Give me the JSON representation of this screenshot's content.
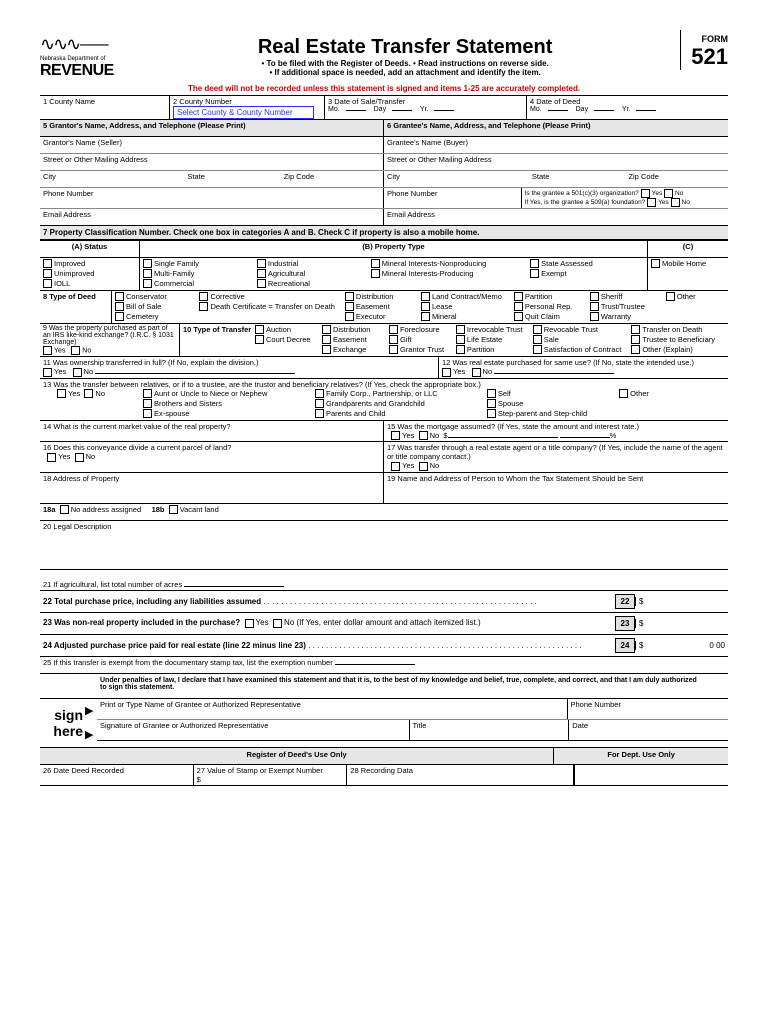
{
  "header": {
    "dept_line1": "Nebraska Department of",
    "dept_line2": "REVENUE",
    "title": "Real Estate Transfer Statement",
    "sub1": "• To be filed with the Register of Deeds.    • Read instructions on reverse side.",
    "sub2": "• If additional space is needed, add an attachment and identify the item.",
    "form_label": "FORM",
    "form_number": "521",
    "warning": "The deed will not be recorded unless this statement is signed and items 1-25 are accurately completed."
  },
  "r1": {
    "c1": "1  County Name",
    "c2": "2  County Number",
    "c2_placeholder": "Select County & County Number",
    "c3": "3  Date of Sale/Transfer",
    "c4": "4  Date of Deed",
    "mo": "Mo.",
    "day": "Day",
    "yr": "Yr."
  },
  "r5": {
    "left": "5  Grantor's Name, Address, and Telephone (Please Print)",
    "right": "6  Grantee's Name, Address, and Telephone (Please Print)"
  },
  "grantor": {
    "name": "Grantor's Name (Seller)",
    "street": "Street or Other Mailing Address",
    "city": "City",
    "state": "State",
    "zip": "Zip Code",
    "phone": "Phone Number",
    "email": "Email Address"
  },
  "grantee": {
    "name": "Grantee's Name (Buyer)",
    "street": "Street or Other Mailing Address",
    "city": "City",
    "state": "State",
    "zip": "Zip Code",
    "phone": "Phone Number",
    "email": "Email Address",
    "q501": "Is the grantee a 501(c)(3) organization?",
    "q509": "If Yes, is the grantee a 509(a) foundation?",
    "yes": "Yes",
    "no": "No"
  },
  "r7": {
    "hdr": "7  Property Classification Number. Check one box in categories A and B. Check C if property is also a mobile home.",
    "a": "(A) Status",
    "b": "(B) Property Type",
    "c": "(C)",
    "a_items": [
      "Improved",
      "Unimproved",
      "IOLL"
    ],
    "b_col1": [
      "Single Family",
      "Multi-Family",
      "Commercial"
    ],
    "b_col2": [
      "Industrial",
      "Agricultural",
      "Recreational"
    ],
    "b_col3": [
      "Mineral Interests-Nonproducing",
      "Mineral Interests-Producing"
    ],
    "b_col4": [
      "State Assessed",
      "Exempt"
    ],
    "c_items": [
      "Mobile Home"
    ]
  },
  "r8": {
    "lbl": "8  Type of Deed",
    "c1": [
      "Conservator",
      "Bill of Sale",
      "Cemetery"
    ],
    "c2": [
      "Corrective",
      "Death Certificate = Transfer on Death"
    ],
    "c3": [
      "Distribution",
      "Easement",
      "Executor"
    ],
    "c4": [
      "Land Contract/Memo",
      "Lease",
      "Mineral"
    ],
    "c5": [
      "Partition",
      "Personal Rep.",
      "Quit Claim"
    ],
    "c6": [
      "Sheriff",
      "Trust/Trustee",
      "Warranty"
    ],
    "c7": [
      "Other"
    ]
  },
  "r9": {
    "lbl": "9   Was the property purchased as part of an IRS like-kind exchange? (I.R.C. § 1031 Exchange)",
    "yes": "Yes",
    "no": "No"
  },
  "r10": {
    "lbl": "10  Type of Transfer",
    "c1": [
      "Auction",
      "Court Decree"
    ],
    "c2": [
      "Distribution",
      "Easement",
      "Exchange"
    ],
    "c3": [
      "Foreclosure",
      "Gift",
      "Grantor Trust"
    ],
    "c4": [
      "Irrevocable Trust",
      "Life Estate",
      "Partition"
    ],
    "c5": [
      "Revocable Trust",
      "Sale",
      "Satisfaction of Contract"
    ],
    "c6": [
      "Transfer on Death",
      "Trustee to Beneficiary",
      "Other (Explain)"
    ]
  },
  "r11": {
    "lbl": "11  Was ownership transferred in full? (If No, explain the division.)",
    "yes": "Yes",
    "no": "No"
  },
  "r12": {
    "lbl": "12  Was real estate purchased for same use? (If No, state the intended use.)",
    "yes": "Yes",
    "no": "No"
  },
  "r13": {
    "lbl": "13  Was the transfer between relatives, or if to a trustee, are the trustor and beneficiary relatives?  (If Yes, check the appropriate box.)",
    "yes": "Yes",
    "no": "No",
    "c1": [
      "Aunt or Uncle to Niece or Nephew",
      "Brothers and Sisters",
      "Ex-spouse"
    ],
    "c2": [
      "Family Corp., Partnership, or LLC",
      "Grandparents and Grandchild",
      "Parents and Child"
    ],
    "c3": [
      "Self",
      "Spouse",
      "Step-parent and Step-child"
    ],
    "c4": [
      "Other"
    ]
  },
  "r14": {
    "lbl": "14  What is the current market value of the real property?"
  },
  "r15": {
    "lbl": "15  Was the mortgage assumed? (If Yes, state the amount and interest rate.)",
    "yes": "Yes",
    "no": "No",
    "dollar": "$",
    "pct": "%"
  },
  "r16": {
    "lbl": "16  Does this conveyance divide a current parcel of land?",
    "yes": "Yes",
    "no": "No"
  },
  "r17": {
    "lbl": "17  Was transfer through a real estate agent or a title company? (If Yes, include the name of the agent or title company contact.)",
    "yes": "Yes",
    "no": "No"
  },
  "r18": {
    "lbl": "18  Address of Property"
  },
  "r19": {
    "lbl": "19  Name and Address of Person to Whom the Tax Statement Should be Sent"
  },
  "r18a": {
    "a": "18a",
    "a_lbl": "No address assigned",
    "b": "18b",
    "b_lbl": "Vacant land"
  },
  "r20": {
    "lbl": "20  Legal Description"
  },
  "r21": {
    "lbl": "21  If agricultural, list total number of acres"
  },
  "r22": {
    "lbl": "22  Total purchase price, including any liabilities assumed",
    "n": "22",
    "d": "$"
  },
  "r23": {
    "lbl": "23  Was non-real property included in the purchase?",
    "yes": "Yes",
    "no": "No",
    "paren": "(If Yes, enter dollar amount and attach itemized list.)",
    "n": "23",
    "d": "$"
  },
  "r24": {
    "lbl": "24  Adjusted purchase price paid for real estate (line 22 minus line 23)",
    "n": "24",
    "d": "$",
    "amt": "0 00"
  },
  "r25": {
    "lbl": "25  If this transfer is exempt from the documentary stamp tax, list the exemption number"
  },
  "penalty": "Under penalties of law, I declare that I have examined this statement and that it is, to the best of my knowledge and belief, true, complete, and correct, and that I am duly authorized to sign this statement.",
  "sign": {
    "lbl1": "sign",
    "lbl2": "here",
    "print": "Print or Type Name of Grantee or Authorized Representative",
    "phone": "Phone Number",
    "sig": "Signature of Grantee or Authorized Representative",
    "title": "Title",
    "date": "Date"
  },
  "footer": {
    "reg": "Register of Deed's Use Only",
    "dept": "For Dept. Use Only",
    "f26": "26  Date Deed Recorded",
    "f27": "27  Value of Stamp or Exempt Number",
    "f28": "28  Recording Data",
    "d": "$"
  }
}
